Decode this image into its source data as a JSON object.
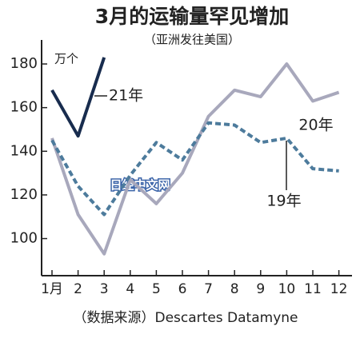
{
  "chart_data": {
    "type": "line",
    "title": "3月的运输量罕见增加",
    "subtitle": "（亚洲发往美国）",
    "unit_label": "万个",
    "source": "（数据来源）Descartes Datamyne",
    "watermark": "日经中文网",
    "categories": [
      "1月",
      "2",
      "3",
      "4",
      "5",
      "6",
      "7",
      "8",
      "9",
      "10",
      "11",
      "12"
    ],
    "series": [
      {
        "name": "20年",
        "color": "#a8a8bc",
        "dashed": false,
        "values": [
          146,
          111,
          93,
          127,
          116,
          130,
          156,
          168,
          165,
          180,
          163,
          167
        ]
      },
      {
        "name": "19年",
        "color": "#4d7b9c",
        "dashed": true,
        "values": [
          145,
          124,
          111,
          129,
          144,
          136,
          153,
          152,
          144,
          146,
          132,
          131
        ]
      },
      {
        "name": "21年",
        "color": "#182c4e",
        "dashed": false,
        "values": [
          168,
          147,
          183,
          null,
          null,
          null,
          null,
          null,
          null,
          null,
          null,
          null
        ]
      }
    ],
    "ylim": [
      83,
      191
    ],
    "yticks": [
      100,
      120,
      140,
      160,
      180
    ]
  }
}
